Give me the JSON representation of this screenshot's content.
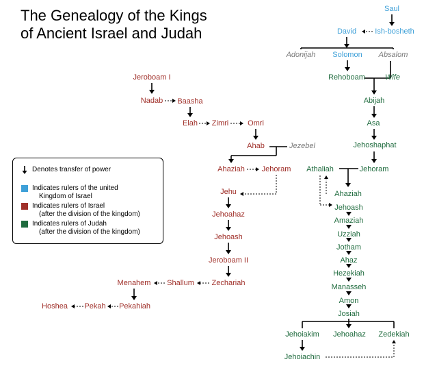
{
  "title_line1": "The Genealogy of the Kings",
  "title_line2": "of Ancient Israel and Judah",
  "colors": {
    "united": "#3ea0d8",
    "israel": "#a0302a",
    "judah": "#1f6b3e",
    "other": "#7a7a7a"
  },
  "legend": {
    "arrow": "Denotes transfer of power",
    "united_line1": "Indicates rulers of the united",
    "united_line2": "Kingdom of Israel",
    "israel_line1": "Indicates rulers of Israel",
    "israel_line2": "(after the division of the kingdom)",
    "judah_line1": "Indicates rulers of Judah",
    "judah_line2": "(after the division of the kingdom)"
  },
  "names": {
    "saul": "Saul",
    "david": "David",
    "ishbosheth": "Ish-bosheth",
    "adonijah": "Adonijah",
    "solomon": "Solomon",
    "absalom": "Absalom",
    "rehoboam": "Rehoboam",
    "wife": "Wife",
    "abijah": "Abijah",
    "asa": "Asa",
    "jehoshaphat": "Jehoshaphat",
    "jehoram_j": "Jehoram",
    "athaliah": "Athaliah",
    "ahaziah_j": "Ahaziah",
    "jehoash_j": "Jehoash",
    "amaziah": "Amaziah",
    "uzziah": "Uzziah",
    "jotham": "Jotham",
    "ahaz": "Ahaz",
    "hezekiah": "Hezekiah",
    "manasseh": "Manasseh",
    "amon": "Amon",
    "josiah": "Josiah",
    "jehoiakim": "Jehoiakim",
    "jehoahaz_j": "Jehoahaz",
    "zedekiah": "Zedekiah",
    "jehoiachin": "Jehoiachin",
    "jeroboam1": "Jeroboam I",
    "nadab": "Nadab",
    "baasha": "Baasha",
    "elah": "Elah",
    "zimri": "Zimri",
    "omri": "Omri",
    "ahab": "Ahab",
    "jezebel": "Jezebel",
    "ahaziah_i": "Ahaziah",
    "jehoram_i": "Jehoram",
    "jehu": "Jehu",
    "jehoahaz_i": "Jehoahaz",
    "jehoash_i": "Jehoash",
    "jeroboam2": "Jeroboam II",
    "zechariah": "Zechariah",
    "shallum": "Shallum",
    "menahem": "Menahem",
    "pekahiah": "Pekahiah",
    "pekah": "Pekah",
    "hoshea": "Hoshea"
  }
}
